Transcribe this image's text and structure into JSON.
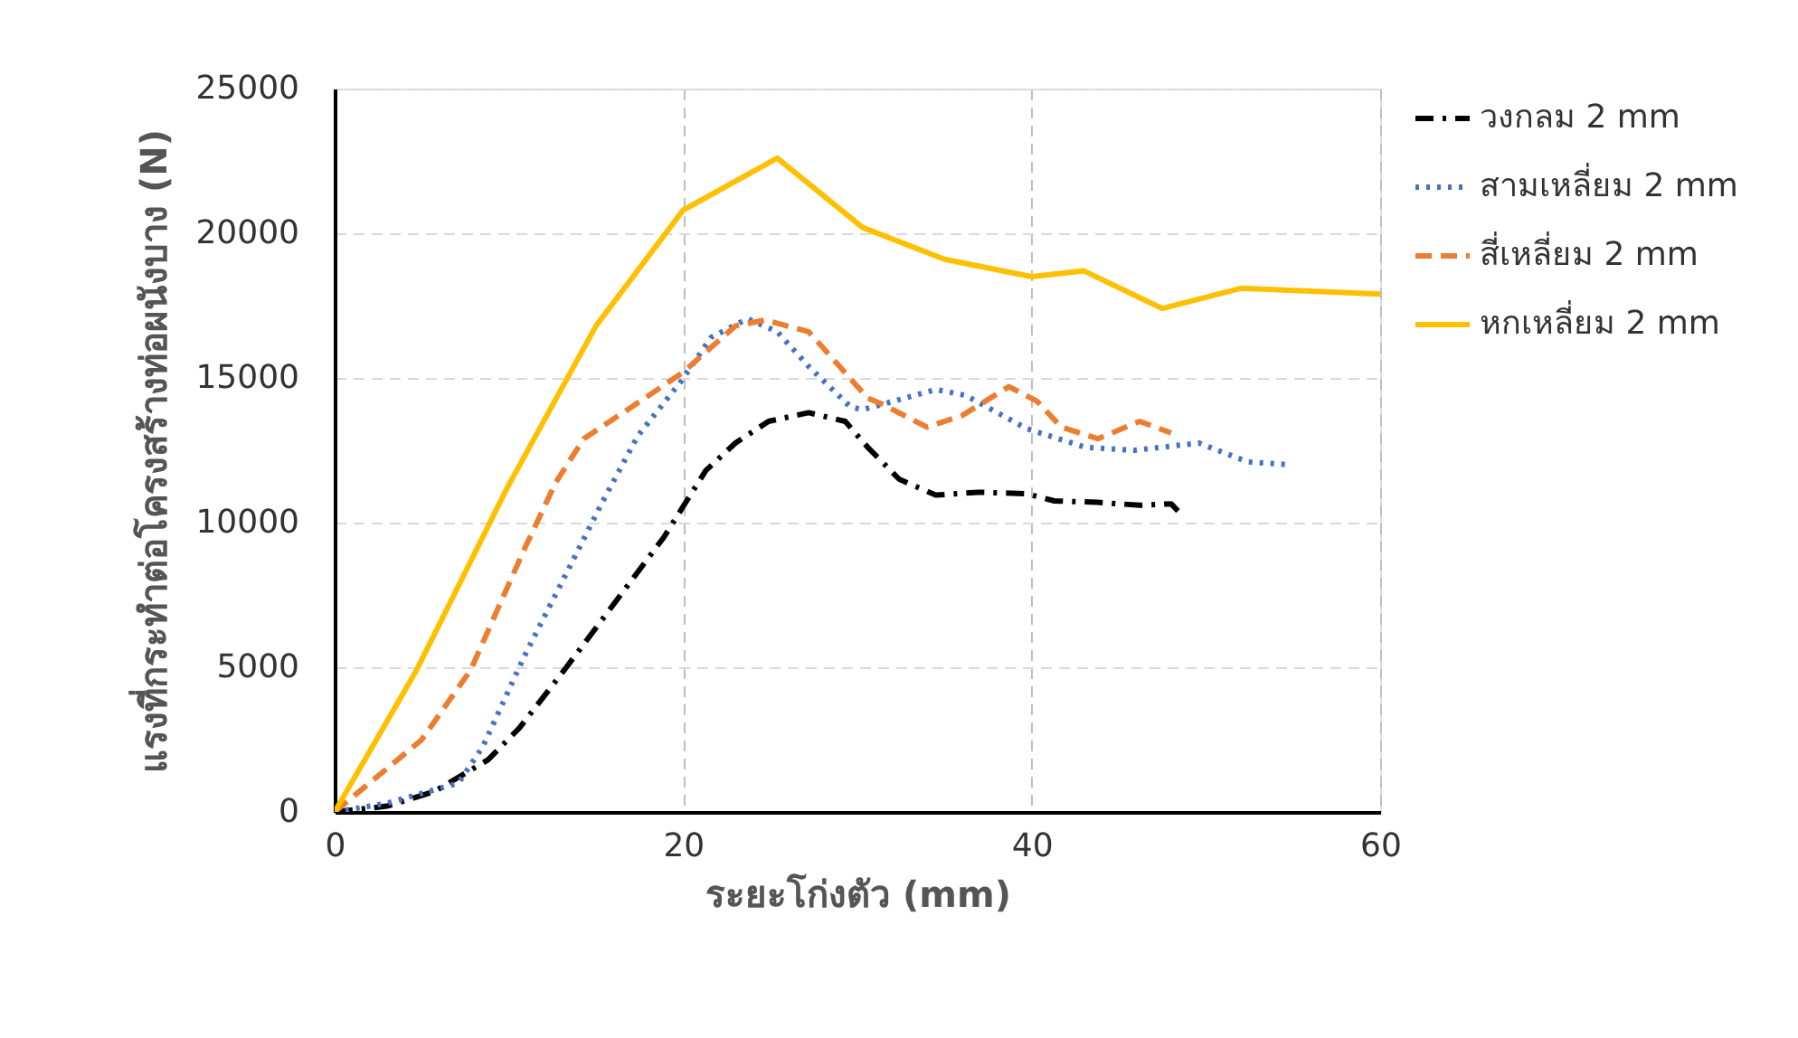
{
  "chart_data": {
    "type": "line",
    "xlabel": "ระยะโก่งตัว (mm)",
    "ylabel": "แรงที่กระทำต่อโครงสร้างท่อผนังบาง (N)",
    "xlim": [
      0,
      60
    ],
    "xticks": [
      0,
      20,
      40,
      60
    ],
    "ylim": [
      0,
      25000
    ],
    "yticks": [
      0,
      5000,
      10000,
      15000,
      20000,
      25000
    ],
    "grid": true,
    "legend": "right",
    "marker": "none",
    "series": [
      {
        "name": "วงกลม 2 mm",
        "color": "#000000",
        "line_style": "dashdot",
        "x": [
          0,
          3,
          5.7,
          8.8,
          10.6,
          13.3,
          16.1,
          18.9,
          20.2,
          21.3,
          23,
          24.9,
          27.2,
          29.3,
          30.6,
          32.4,
          34.5,
          36.9,
          39.7,
          41.3,
          43.8,
          46.2,
          48,
          48.4
        ],
        "values": [
          0,
          200,
          700,
          1800,
          2900,
          5000,
          7250,
          9500,
          10750,
          11800,
          12750,
          13500,
          13800,
          13500,
          12600,
          11500,
          10950,
          11050,
          11000,
          10750,
          10700,
          10600,
          10650,
          10400
        ]
      },
      {
        "name": "สามเหลี่ยม 2 mm",
        "color": "#4472c4",
        "line_style": "dotted",
        "x": [
          0,
          3,
          7.1,
          8.5,
          10.9,
          13.3,
          15.4,
          17.4,
          19.9,
          21.6,
          23.7,
          25.4,
          27.2,
          29.6,
          30.3,
          34.5,
          36.2,
          39.7,
          43.1,
          45.9,
          49.6,
          52.4,
          54.8
        ],
        "values": [
          0,
          300,
          1000,
          2250,
          5400,
          8250,
          10750,
          13000,
          14900,
          16400,
          17050,
          16600,
          15400,
          14000,
          13900,
          14600,
          14400,
          13250,
          12600,
          12500,
          12750,
          12100,
          12000
        ]
      },
      {
        "name": "สี่เหลี่ยม 2 mm",
        "color": "#ed7d31",
        "line_style": "dashed",
        "x": [
          0,
          2,
          5,
          7.8,
          10.9,
          12.7,
          14.3,
          16.8,
          18.9,
          20,
          23,
          24.7,
          27.2,
          30.6,
          31.4,
          34,
          36,
          38.7,
          40.3,
          41.7,
          43.8,
          46.2,
          48
        ],
        "values": [
          0,
          1000,
          2500,
          4900,
          9100,
          11400,
          12900,
          13900,
          14750,
          15200,
          16800,
          17000,
          16600,
          14300,
          14100,
          13300,
          13700,
          14700,
          14200,
          13300,
          12900,
          13500,
          13100
        ]
      },
      {
        "name": "หกเหลี่ยม 2 mm",
        "color": "#ffc000",
        "line_style": "solid",
        "x": [
          0,
          4.7,
          9.9,
          15,
          20,
          25.4,
          30.3,
          35,
          40,
          43,
          47.5,
          52,
          60
        ],
        "values": [
          0,
          4900,
          11200,
          16800,
          20800,
          22600,
          20200,
          19100,
          18500,
          18700,
          17400,
          18100,
          17900
        ]
      }
    ]
  }
}
